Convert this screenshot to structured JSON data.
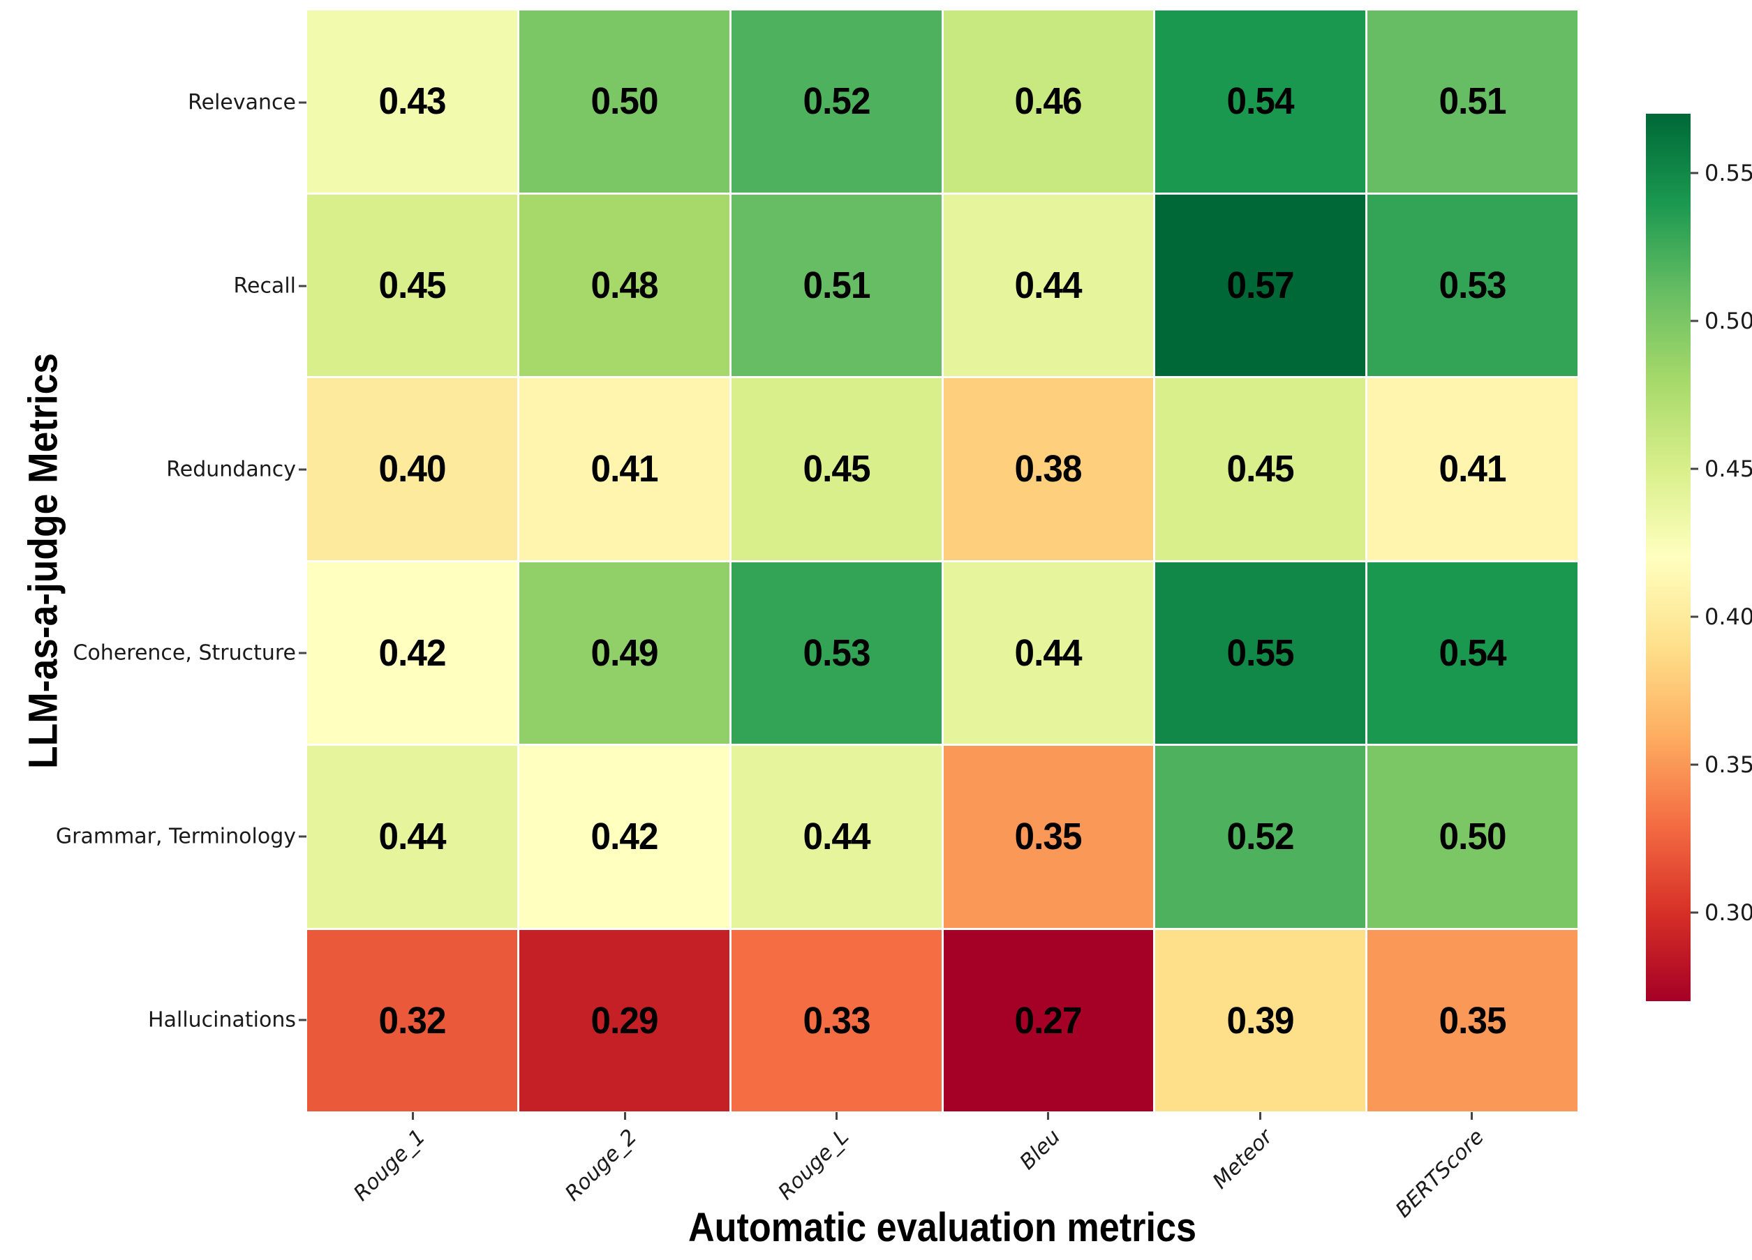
{
  "figure": {
    "background": "#ffffff",
    "text_color": "#000000"
  },
  "chart_data": {
    "type": "heatmap",
    "title": "",
    "xlabel": "Automatic evaluation metrics",
    "ylabel": "LLM-as-a-judge Metrics",
    "x_categories": [
      "Rouge_1",
      "Rouge_2",
      "Rouge_L",
      "Bleu",
      "Meteor",
      "BERTScore"
    ],
    "y_categories": [
      "Relevance",
      "Recall",
      "Redundancy",
      "Coherence, Structure",
      "Grammar, Terminology",
      "Hallucinations"
    ],
    "values": [
      [
        0.43,
        0.5,
        0.52,
        0.46,
        0.54,
        0.51
      ],
      [
        0.45,
        0.48,
        0.51,
        0.44,
        0.57,
        0.53
      ],
      [
        0.4,
        0.41,
        0.45,
        0.38,
        0.45,
        0.41
      ],
      [
        0.42,
        0.49,
        0.53,
        0.44,
        0.55,
        0.54
      ],
      [
        0.44,
        0.42,
        0.44,
        0.35,
        0.52,
        0.5
      ],
      [
        0.32,
        0.29,
        0.33,
        0.27,
        0.39,
        0.35
      ]
    ],
    "cell_label_decimals": 2,
    "grid": false,
    "legend_position": "right",
    "colormap": {
      "name": "RdYlGn",
      "vmin": 0.27,
      "vmax": 0.57,
      "stops": [
        "#a50026",
        "#d73027",
        "#f46d43",
        "#fdae61",
        "#fee08b",
        "#ffffbf",
        "#d9ef8b",
        "#a6d96a",
        "#66bd63",
        "#1a9850",
        "#006837"
      ]
    },
    "colorbar": {
      "tick_labels": [
        "0.55",
        "0.50",
        "0.45",
        "0.40",
        "0.35",
        "0.30"
      ],
      "tick_values": [
        0.55,
        0.5,
        0.45,
        0.4,
        0.35,
        0.3
      ]
    }
  }
}
